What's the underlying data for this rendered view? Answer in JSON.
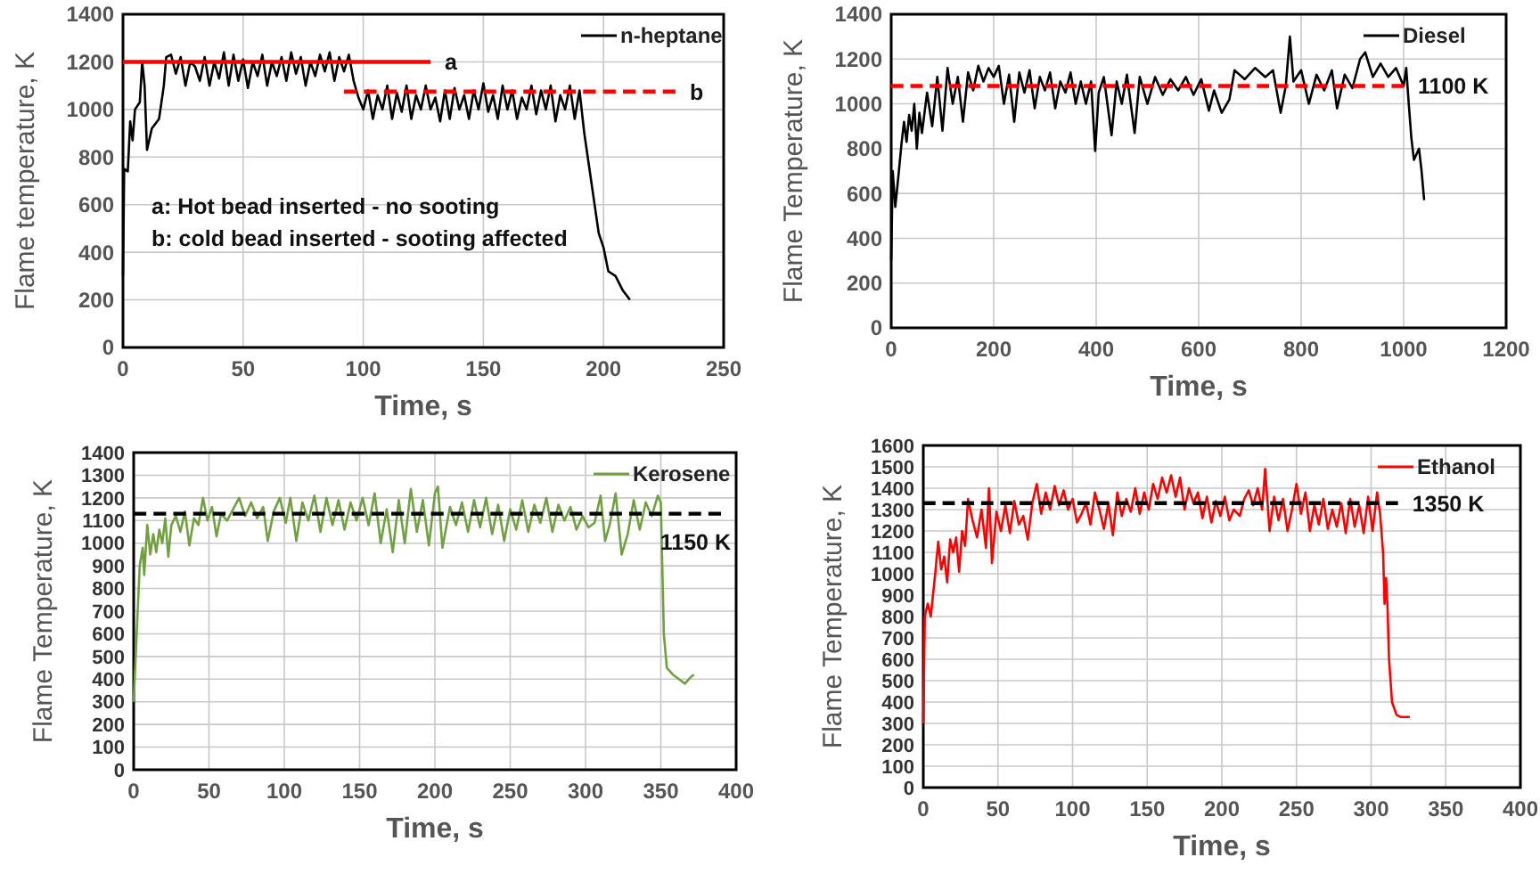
{
  "chart_data": [
    {
      "type": "line",
      "xlabel": "Time, s",
      "ylabel": "Flame temperature, K",
      "xlim": [
        0,
        250
      ],
      "xticks": [
        0,
        50,
        100,
        150,
        200,
        250
      ],
      "ylim": [
        0,
        1400
      ],
      "yticks": [
        0,
        200,
        400,
        600,
        800,
        1000,
        1200,
        1400
      ],
      "grid": true,
      "legend": "top right",
      "series": [
        {
          "name": "n-heptane",
          "color": "#000000",
          "x": [
            0,
            0.5,
            2,
            3,
            4,
            5,
            7,
            8,
            9,
            10,
            12,
            15,
            17,
            18,
            20,
            22,
            24,
            26,
            28,
            30,
            32,
            34,
            36,
            38,
            40,
            42,
            44,
            46,
            48,
            50,
            52,
            54,
            56,
            58,
            60,
            62,
            64,
            66,
            68,
            70,
            72,
            74,
            76,
            78,
            80,
            82,
            84,
            86,
            88,
            90,
            92,
            94,
            96,
            98,
            100,
            102,
            104,
            106,
            108,
            110,
            112,
            114,
            116,
            118,
            120,
            122,
            124,
            126,
            128,
            130,
            132,
            134,
            136,
            138,
            140,
            142,
            144,
            146,
            148,
            150,
            152,
            154,
            156,
            158,
            160,
            162,
            164,
            166,
            168,
            170,
            172,
            174,
            176,
            178,
            180,
            182,
            184,
            186,
            188,
            190,
            192,
            194,
            196,
            198,
            200,
            202,
            205,
            208,
            211
          ],
          "values": [
            300,
            750,
            740,
            950,
            870,
            1000,
            1030,
            1200,
            1100,
            830,
            920,
            960,
            1100,
            1220,
            1230,
            1150,
            1220,
            1100,
            1200,
            1180,
            1120,
            1220,
            1100,
            1200,
            1130,
            1240,
            1100,
            1230,
            1120,
            1210,
            1090,
            1200,
            1140,
            1230,
            1100,
            1200,
            1140,
            1220,
            1120,
            1240,
            1150,
            1220,
            1100,
            1200,
            1140,
            1230,
            1160,
            1240,
            1120,
            1220,
            1160,
            1230,
            1120,
            1050,
            1000,
            1080,
            960,
            1060,
            1000,
            1100,
            960,
            1070,
            990,
            1100,
            960,
            1060,
            1000,
            1100,
            1000,
            1050,
            950,
            1080,
            960,
            1090,
            1000,
            1060,
            960,
            1080,
            1000,
            1110,
            990,
            1060,
            960,
            1100,
            1000,
            1080,
            960,
            1050,
            1000,
            1100,
            980,
            1080,
            1000,
            1100,
            950,
            1060,
            1000,
            1100,
            960,
            1080,
            900,
            760,
            620,
            480,
            420,
            320,
            300,
            240,
            200
          ]
        },
        {
          "type": "line",
          "color": "#ff0000",
          "line_style": "solid",
          "x": [
            0,
            128
          ],
          "values": [
            1200,
            1200
          ]
        },
        {
          "type": "line",
          "color": "#ff0000",
          "line_style": "dashed",
          "x": [
            92,
            230
          ],
          "values": [
            1075,
            1075
          ]
        }
      ],
      "annotations": [
        {
          "text": "a",
          "x": 128,
          "y": 1200
        },
        {
          "text": "b",
          "x": 230,
          "y": 1075
        },
        "a: Hot bead inserted - no sooting",
        "b: cold bead inserted - sooting affected"
      ]
    },
    {
      "type": "line",
      "xlabel": "Time, s",
      "ylabel": "Flame Temperature, K",
      "xlim": [
        0,
        1200
      ],
      "xticks": [
        0,
        200,
        400,
        600,
        800,
        1000,
        1200
      ],
      "ylim": [
        0,
        1400
      ],
      "yticks": [
        0,
        200,
        400,
        600,
        800,
        1000,
        1200,
        1400
      ],
      "grid": true,
      "legend": "top right",
      "series": [
        {
          "name": "Diesel",
          "color": "#000000",
          "x": [
            0,
            3,
            8,
            15,
            20,
            25,
            30,
            35,
            40,
            45,
            50,
            55,
            60,
            70,
            80,
            90,
            100,
            110,
            120,
            130,
            140,
            150,
            160,
            170,
            180,
            190,
            200,
            210,
            220,
            230,
            240,
            250,
            260,
            270,
            280,
            290,
            300,
            310,
            320,
            330,
            340,
            350,
            360,
            370,
            380,
            390,
            398,
            405,
            415,
            430,
            440,
            450,
            460,
            475,
            485,
            500,
            515,
            530,
            545,
            560,
            575,
            590,
            605,
            620,
            630,
            645,
            660,
            670,
            690,
            710,
            730,
            745,
            760,
            770,
            778,
            785,
            800,
            815,
            830,
            845,
            860,
            870,
            885,
            900,
            915,
            925,
            940,
            955,
            970,
            985,
            1000,
            1005,
            1010,
            1015,
            1020,
            1030,
            1035,
            1040
          ],
          "values": [
            300,
            700,
            540,
            700,
            820,
            920,
            830,
            950,
            880,
            1000,
            800,
            960,
            870,
            1050,
            900,
            1120,
            880,
            1160,
            1000,
            1120,
            920,
            1140,
            1060,
            1170,
            1100,
            1160,
            1120,
            1170,
            1000,
            1130,
            920,
            1140,
            1050,
            1150,
            980,
            1120,
            1060,
            1140,
            980,
            1100,
            1050,
            1140,
            1000,
            1100,
            1000,
            1100,
            790,
            1050,
            1120,
            860,
            1100,
            1000,
            1130,
            870,
            1120,
            1000,
            1120,
            1040,
            1110,
            1060,
            1120,
            1040,
            1110,
            970,
            1060,
            960,
            1020,
            1150,
            1110,
            1160,
            1120,
            1150,
            960,
            1080,
            1300,
            1100,
            1150,
            1000,
            1130,
            1060,
            1150,
            980,
            1130,
            1070,
            1200,
            1230,
            1120,
            1180,
            1120,
            1160,
            1080,
            1160,
            1000,
            850,
            750,
            800,
            700,
            570
          ]
        },
        {
          "type": "line",
          "color": "#ff0000",
          "line_style": "dashed",
          "x": [
            0,
            1000
          ],
          "values": [
            1080,
            1080
          ]
        }
      ],
      "annotations": [
        {
          "text": "1100 K",
          "x": 1000,
          "y": 1080
        }
      ]
    },
    {
      "type": "line",
      "xlabel": "Time, s",
      "ylabel": "Flame Temperature, K",
      "xlim": [
        0,
        400
      ],
      "xticks": [
        0,
        50,
        100,
        150,
        200,
        250,
        300,
        350,
        400
      ],
      "ylim": [
        0,
        1400
      ],
      "yticks": [
        0,
        100,
        200,
        300,
        400,
        500,
        600,
        700,
        800,
        900,
        1000,
        1100,
        1200,
        1300,
        1400
      ],
      "grid": true,
      "legend": "top right",
      "series": [
        {
          "name": "Kerosene",
          "color": "#70a040",
          "x": [
            0,
            2,
            4,
            6,
            7,
            9,
            11,
            13,
            15,
            17,
            19,
            21,
            23,
            25,
            28,
            31,
            34,
            37,
            40,
            43,
            46,
            49,
            52,
            55,
            58,
            62,
            66,
            70,
            74,
            78,
            82,
            86,
            89,
            93,
            97,
            101,
            104,
            108,
            112,
            116,
            120,
            124,
            128,
            132,
            136,
            140,
            144,
            148,
            152,
            156,
            160,
            164,
            168,
            172,
            176,
            180,
            184,
            188,
            192,
            196,
            200,
            202,
            205,
            210,
            214,
            218,
            222,
            226,
            230,
            234,
            238,
            242,
            246,
            250,
            254,
            258,
            262,
            266,
            270,
            274,
            278,
            282,
            286,
            290,
            294,
            298,
            302,
            306,
            310,
            313,
            316,
            320,
            324,
            328,
            332,
            336,
            340,
            344,
            348,
            350,
            352,
            354,
            358,
            362,
            366,
            370,
            372
          ],
          "values": [
            300,
            600,
            900,
            980,
            860,
            1080,
            950,
            1040,
            960,
            1060,
            1000,
            1110,
            940,
            1080,
            1120,
            1050,
            1140,
            990,
            1110,
            1080,
            1200,
            1100,
            1160,
            1030,
            1130,
            1100,
            1150,
            1200,
            1120,
            1180,
            1110,
            1160,
            1010,
            1140,
            1200,
            1090,
            1200,
            1010,
            1180,
            1100,
            1210,
            1050,
            1200,
            1080,
            1190,
            1060,
            1180,
            1100,
            1200,
            1080,
            1220,
            1000,
            1150,
            960,
            1190,
            1000,
            1240,
            1050,
            1190,
            990,
            1220,
            1250,
            980,
            1160,
            1080,
            1180,
            1050,
            1190,
            1070,
            1200,
            1040,
            1170,
            1010,
            1150,
            1060,
            1190,
            1050,
            1170,
            1090,
            1200,
            1050,
            1170,
            1100,
            1160,
            1060,
            1120,
            1070,
            1090,
            1210,
            1010,
            1080,
            1220,
            950,
            1040,
            1190,
            1060,
            1180,
            1120,
            1210,
            1180,
            600,
            450,
            420,
            400,
            380,
            410,
            420
          ]
        },
        {
          "type": "line",
          "color": "#000000",
          "line_style": "dashed",
          "x": [
            0,
            390
          ],
          "values": [
            1130,
            1130
          ]
        }
      ],
      "annotations": [
        {
          "text": "1150 K",
          "x": 390,
          "y": 1130
        }
      ]
    },
    {
      "type": "line",
      "xlabel": "Time, s",
      "ylabel": "Flame Temperature, K",
      "xlim": [
        0,
        400
      ],
      "xticks": [
        0,
        50,
        100,
        150,
        200,
        250,
        300,
        350,
        400
      ],
      "ylim": [
        0,
        1600
      ],
      "yticks": [
        0,
        100,
        200,
        300,
        400,
        500,
        600,
        700,
        800,
        900,
        1000,
        1100,
        1200,
        1300,
        1400,
        1500,
        1600
      ],
      "grid": true,
      "legend": "top right",
      "series": [
        {
          "name": "Ethanol",
          "color": "#ff0000",
          "x": [
            0,
            1,
            3,
            5,
            8,
            10,
            12,
            14,
            16,
            18,
            20,
            22,
            24,
            26,
            28,
            30,
            33,
            36,
            39,
            42,
            44,
            46,
            49,
            52,
            55,
            58,
            61,
            64,
            67,
            70,
            73,
            76,
            79,
            82,
            85,
            88,
            91,
            94,
            97,
            100,
            103,
            106,
            109,
            112,
            115,
            118,
            121,
            124,
            127,
            130,
            133,
            136,
            139,
            142,
            145,
            148,
            151,
            154,
            157,
            160,
            163,
            166,
            169,
            172,
            175,
            178,
            181,
            184,
            187,
            190,
            193,
            196,
            199,
            202,
            205,
            208,
            212,
            215,
            218,
            221,
            224,
            227,
            229,
            232,
            235,
            238,
            241,
            244,
            247,
            250,
            253,
            256,
            259,
            262,
            265,
            268,
            271,
            274,
            277,
            280,
            283,
            286,
            289,
            292,
            295,
            298,
            301,
            304,
            306,
            308,
            309,
            310,
            311,
            312,
            314,
            317,
            320,
            326
          ],
          "values": [
            300,
            800,
            860,
            800,
            1000,
            1150,
            1020,
            1080,
            960,
            1160,
            1100,
            1170,
            1010,
            1200,
            1130,
            1350,
            1250,
            1170,
            1300,
            1120,
            1400,
            1050,
            1290,
            1200,
            1320,
            1190,
            1340,
            1230,
            1270,
            1160,
            1330,
            1420,
            1280,
            1380,
            1300,
            1410,
            1320,
            1390,
            1300,
            1350,
            1240,
            1280,
            1330,
            1230,
            1380,
            1300,
            1210,
            1330,
            1180,
            1380,
            1270,
            1350,
            1290,
            1400,
            1280,
            1380,
            1300,
            1420,
            1350,
            1450,
            1380,
            1460,
            1360,
            1450,
            1300,
            1400,
            1330,
            1380,
            1260,
            1360,
            1240,
            1340,
            1270,
            1360,
            1250,
            1300,
            1270,
            1350,
            1390,
            1320,
            1400,
            1300,
            1490,
            1200,
            1360,
            1250,
            1350,
            1200,
            1300,
            1420,
            1280,
            1380,
            1200,
            1320,
            1230,
            1350,
            1210,
            1300,
            1220,
            1330,
            1190,
            1350,
            1220,
            1320,
            1190,
            1360,
            1200,
            1380,
            1280,
            1100,
            860,
            980,
            840,
            600,
            400,
            340,
            330,
            330
          ]
        },
        {
          "type": "line",
          "color": "#000000",
          "line_style": "dashed",
          "x": [
            0,
            318
          ],
          "values": [
            1330,
            1330
          ]
        }
      ],
      "annotations": [
        {
          "text": "1350 K",
          "x": 318,
          "y": 1330
        }
      ]
    }
  ]
}
